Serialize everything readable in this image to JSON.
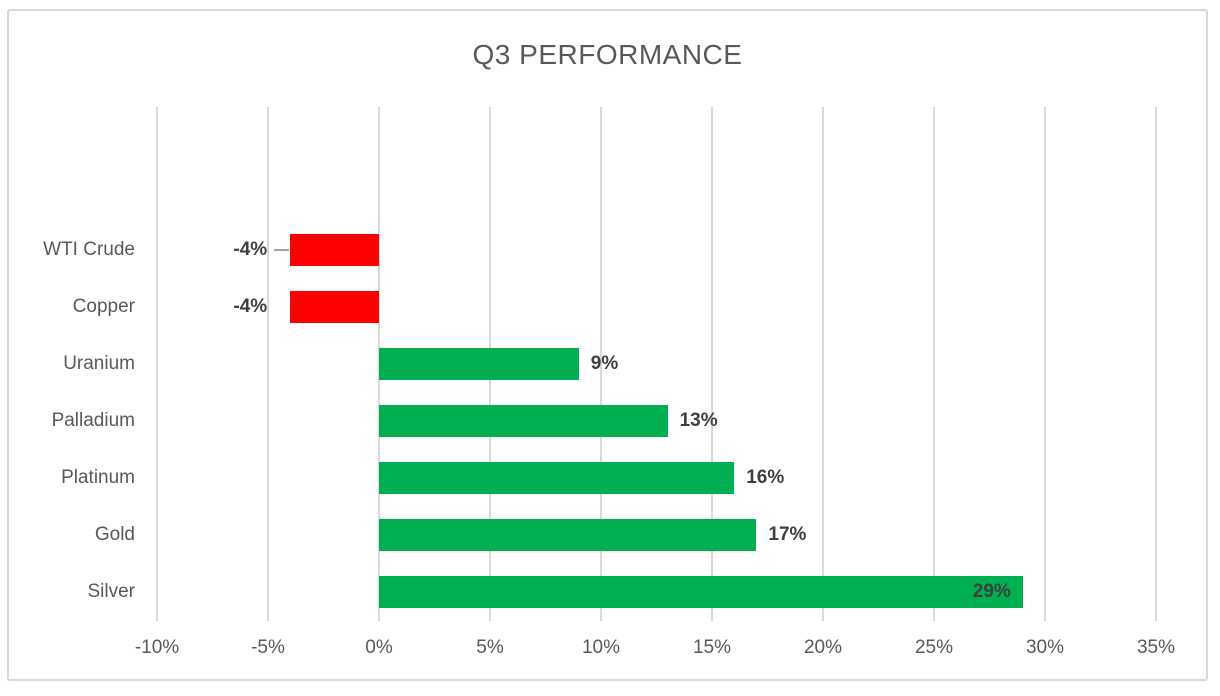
{
  "chart_data": {
    "type": "bar",
    "orientation": "horizontal",
    "title": "Q3 PERFORMANCE",
    "categories": [
      "WTI Crude",
      "Copper",
      "Uranium",
      "Palladium",
      "Platinum",
      "Gold",
      "Silver"
    ],
    "values": [
      -4,
      -4,
      9,
      13,
      16,
      17,
      29
    ],
    "value_labels": [
      "-4%",
      "-4%",
      "9%",
      "13%",
      "16%",
      "17%",
      "29%"
    ],
    "bar_colors": [
      "#FF0000",
      "#FF0000",
      "#00B050",
      "#00B050",
      "#00B050",
      "#00B050",
      "#00B050"
    ],
    "positive_color": "#00B050",
    "negative_color": "#FF0000",
    "label_placement": [
      "outside",
      "outside",
      "outside",
      "outside",
      "outside",
      "outside",
      "inside"
    ],
    "label_leader": [
      true,
      false,
      false,
      false,
      false,
      false,
      false
    ],
    "xlim": [
      -10,
      35
    ],
    "x_tick_labels": [
      "-10%",
      "-5%",
      "0%",
      "5%",
      "10%",
      "15%",
      "20%",
      "25%",
      "30%",
      "35%"
    ],
    "x_tick_values": [
      -10,
      -5,
      0,
      5,
      10,
      15,
      20,
      25,
      30,
      35
    ],
    "grid": true,
    "gridline_color": "#D9D9D9",
    "empty_top_slots": 2,
    "legend": "none",
    "xlabel": "",
    "ylabel": ""
  }
}
